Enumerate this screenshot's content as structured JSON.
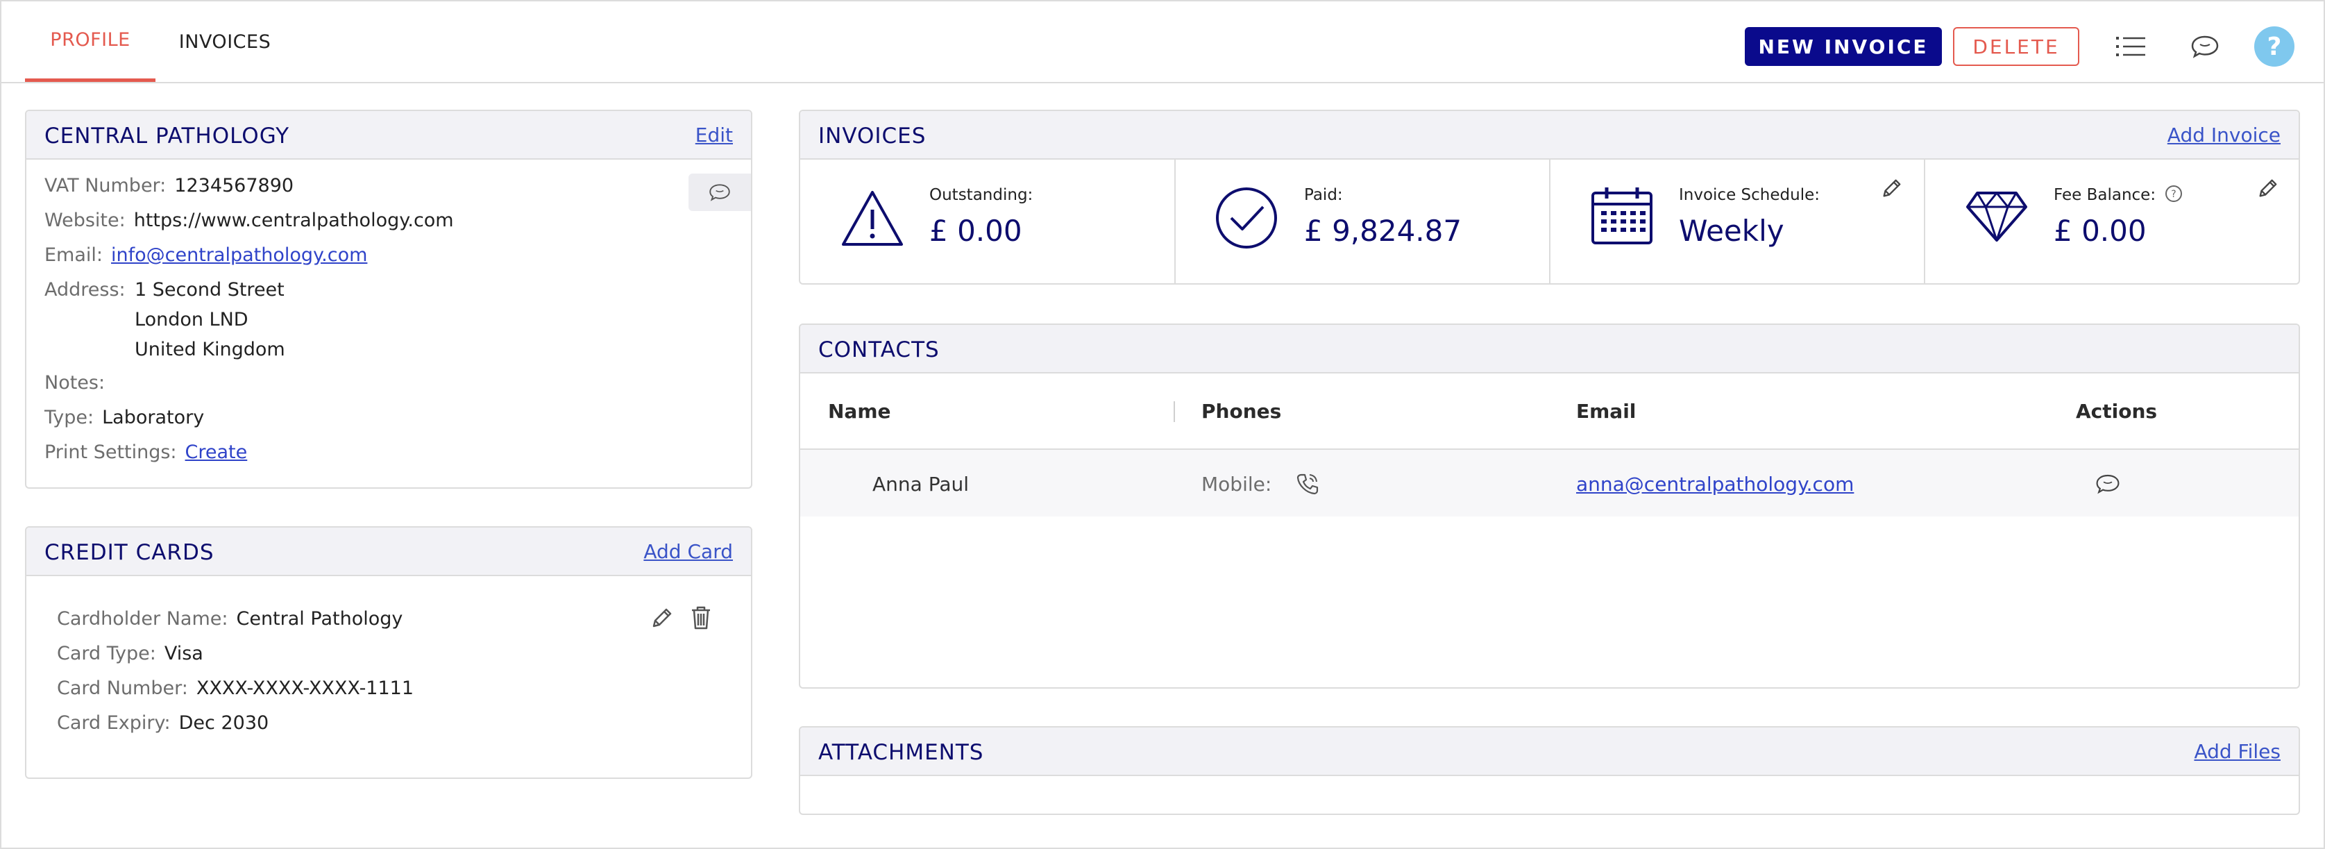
{
  "tabs": [
    {
      "label": "PROFILE",
      "active": true
    },
    {
      "label": "INVOICES",
      "active": false
    }
  ],
  "toolbar": {
    "new_invoice_label": "NEW INVOICE",
    "delete_label": "DELETE",
    "list_icon": "list-icon",
    "comment_icon": "comment-icon",
    "help_label": "?"
  },
  "profile": {
    "title": "CENTRAL PATHOLOGY",
    "edit_label": "Edit",
    "vat_label": "VAT Number:",
    "vat_value": "1234567890",
    "website_label": "Website:",
    "website_value": "https://www.centralpathology.com",
    "email_label": "Email:",
    "email_value": "info@centralpathology.com",
    "address_label": "Address:",
    "address_lines": [
      "1 Second Street",
      "London LND",
      "United Kingdom"
    ],
    "notes_label": "Notes:",
    "type_label": "Type:",
    "type_value": "Laboratory",
    "print_label": "Print Settings:",
    "print_value": "Create"
  },
  "credit_cards": {
    "title": "CREDIT CARDS",
    "add_label": "Add Card",
    "cardholder_label": "Cardholder Name:",
    "cardholder_value": "Central Pathology",
    "type_label": "Card Type:",
    "type_value": "Visa",
    "number_label": "Card Number:",
    "number_value": "XXXX-XXXX-XXXX-1111",
    "expiry_label": "Card Expiry:",
    "expiry_value": "Dec 2030"
  },
  "invoices": {
    "title": "INVOICES",
    "add_label": "Add Invoice",
    "outstanding_label": "Outstanding:",
    "outstanding_value": "£ 0.00",
    "paid_label": "Paid:",
    "paid_value": "£ 9,824.87",
    "schedule_label": "Invoice Schedule:",
    "schedule_value": "Weekly",
    "fee_label": "Fee Balance:",
    "fee_value": "£ 0.00"
  },
  "contacts": {
    "title": "CONTACTS",
    "columns": [
      "Name",
      "Phones",
      "Email",
      "Actions"
    ],
    "rows": [
      {
        "name": "Anna Paul",
        "phone_label": "Mobile:",
        "email": "anna@centralpathology.com"
      }
    ]
  },
  "attachments": {
    "title": "ATTACHMENTS",
    "add_label": "Add Files"
  },
  "colors": {
    "accent": "#e45a4f",
    "primary": "#0a0a8c",
    "heading": "#0d0d6e",
    "link": "#3a54c8",
    "help": "#7fc8ee"
  }
}
